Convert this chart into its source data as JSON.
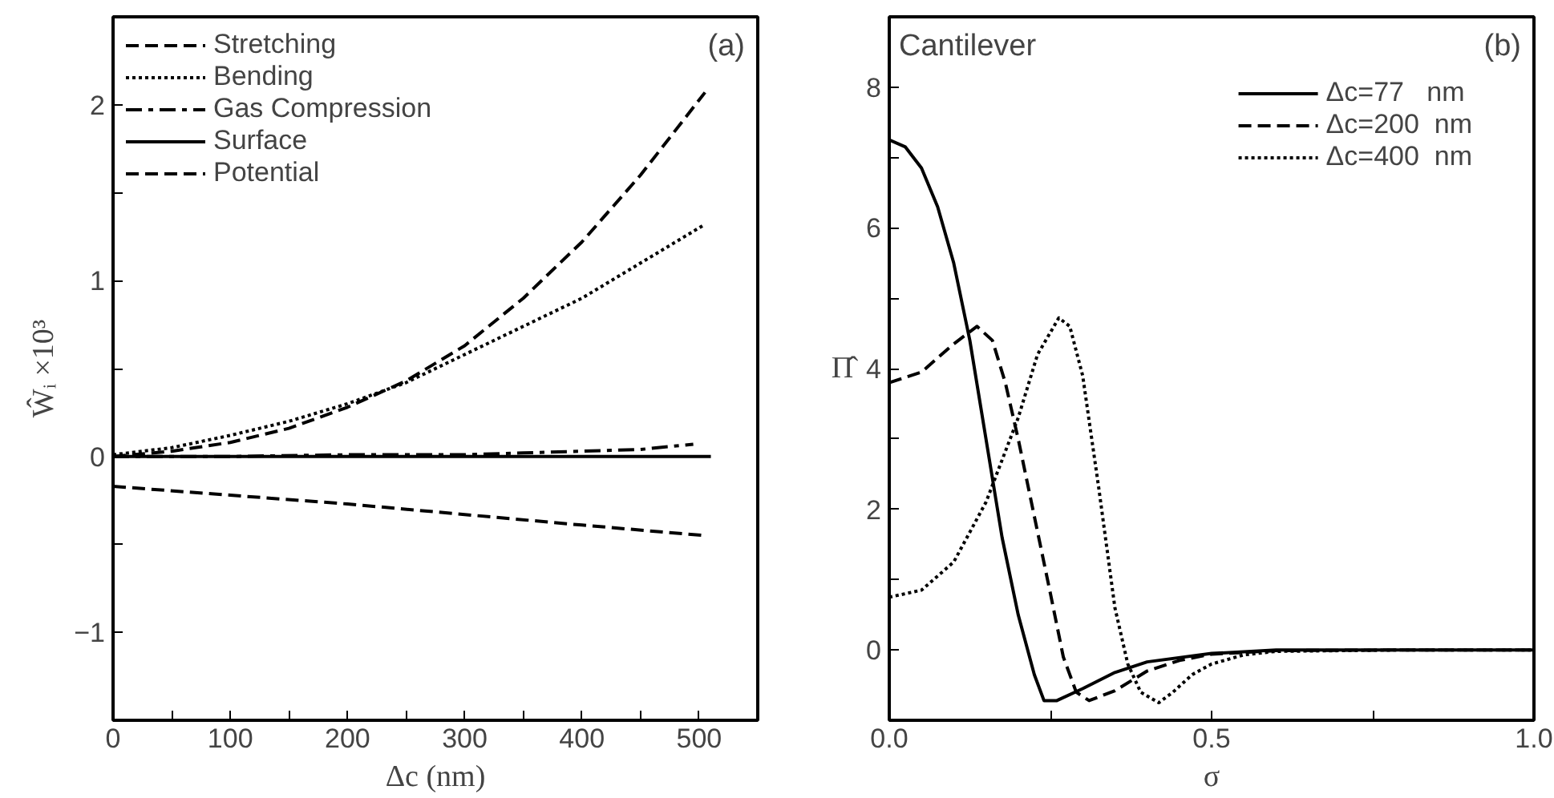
{
  "chart_data": [
    {
      "type": "line",
      "xlabel": "Δc (nm)",
      "ylabel": "Ŵᵢ ×10³",
      "annotations": [
        "(a)"
      ],
      "xlim": [
        0,
        550
      ],
      "ylim": [
        -1.5,
        2.5
      ],
      "xticks": [
        0,
        {
          "value": 50,
          "label": null
        },
        100,
        {
          "value": 150,
          "label": null
        },
        200,
        {
          "value": 250,
          "label": null
        },
        300,
        {
          "value": 350,
          "label": null
        },
        400,
        {
          "value": 450,
          "label": null
        },
        500
      ],
      "yticks": [
        -1,
        {
          "value": -0.5,
          "label": null
        },
        0,
        {
          "value": 0.5,
          "label": null
        },
        1,
        {
          "value": 1.5,
          "label": null
        },
        2
      ],
      "grid": false,
      "legend": "top left",
      "marker": "none",
      "series": [
        {
          "name": "Stretching",
          "color": "#000000",
          "line_style": "dashed",
          "x": [
            0,
            50,
            100,
            150,
            200,
            250,
            300,
            350,
            400,
            450,
            505
          ],
          "values": [
            0,
            0.03,
            0.08,
            0.16,
            0.28,
            0.43,
            0.63,
            0.9,
            1.22,
            1.6,
            2.07
          ]
        },
        {
          "name": "Bending",
          "color": "#000000",
          "line_style": "dotted",
          "x": [
            0,
            50,
            100,
            150,
            200,
            250,
            300,
            350,
            400,
            450,
            505
          ],
          "values": [
            0.01,
            0.05,
            0.12,
            0.2,
            0.3,
            0.42,
            0.58,
            0.74,
            0.9,
            1.1,
            1.32
          ]
        },
        {
          "name": "Gas Compression",
          "color": "#000000",
          "line_style": "dashdot",
          "x": [
            0,
            100,
            200,
            300,
            350,
            400,
            450,
            495
          ],
          "values": [
            0,
            0,
            0.01,
            0.01,
            0.02,
            0.03,
            0.04,
            0.07
          ]
        },
        {
          "name": "Surface",
          "color": "#000000",
          "line_style": "solid",
          "x": [
            0,
            510
          ],
          "values": [
            0,
            0
          ]
        },
        {
          "name": "Potential",
          "color": "#000000",
          "line_style": "dashed",
          "x": [
            0,
            100,
            200,
            300,
            400,
            505
          ],
          "values": [
            -0.17,
            -0.22,
            -0.27,
            -0.33,
            -0.39,
            -0.45
          ]
        }
      ]
    },
    {
      "type": "line",
      "xlabel": "σ",
      "ylabel": "Π̂",
      "annotations": [
        "Cantilever",
        "(b)"
      ],
      "xlim": [
        0,
        1
      ],
      "ylim": [
        -1,
        9
      ],
      "xticks": [
        {
          "value": 0,
          "label": "0.0"
        },
        {
          "value": 0.25,
          "label": null
        },
        0.5,
        {
          "value": 0.75,
          "label": null
        },
        {
          "value": 1,
          "label": "1.0"
        }
      ],
      "yticks": [
        0,
        {
          "value": 1,
          "label": null
        },
        2,
        {
          "value": 3,
          "label": null
        },
        4,
        {
          "value": 5,
          "label": null
        },
        6,
        {
          "value": 7,
          "label": null
        },
        8
      ],
      "grid": false,
      "legend": "top right",
      "marker": "none",
      "series": [
        {
          "name": "Δc=77   nm",
          "color": "#000000",
          "line_style": "solid",
          "x": [
            0,
            0.025,
            0.05,
            0.075,
            0.1,
            0.125,
            0.15,
            0.175,
            0.2,
            0.225,
            0.24,
            0.26,
            0.3,
            0.35,
            0.4,
            0.5,
            0.6,
            0.8,
            1.0
          ],
          "values": [
            7.25,
            7.15,
            6.85,
            6.3,
            5.5,
            4.4,
            3.0,
            1.6,
            0.5,
            -0.35,
            -0.72,
            -0.72,
            -0.55,
            -0.32,
            -0.17,
            -0.05,
            0,
            0,
            0
          ]
        },
        {
          "name": "Δc=200  nm",
          "color": "#000000",
          "line_style": "dashed",
          "x": [
            0,
            0.05,
            0.1,
            0.136,
            0.16,
            0.18,
            0.2,
            0.225,
            0.25,
            0.27,
            0.29,
            0.31,
            0.35,
            0.4,
            0.45,
            0.5,
            0.6,
            0.8,
            1.0
          ],
          "values": [
            3.8,
            3.95,
            4.35,
            4.6,
            4.4,
            3.8,
            3.0,
            1.9,
            0.8,
            -0.1,
            -0.6,
            -0.72,
            -0.58,
            -0.3,
            -0.15,
            -0.06,
            -0.01,
            0,
            0
          ]
        },
        {
          "name": "Δc=400  nm",
          "color": "#000000",
          "line_style": "dotted",
          "x": [
            0,
            0.05,
            0.1,
            0.15,
            0.2,
            0.23,
            0.263,
            0.28,
            0.3,
            0.325,
            0.35,
            0.37,
            0.39,
            0.418,
            0.44,
            0.47,
            0.5,
            0.55,
            0.6,
            0.8,
            1.0
          ],
          "values": [
            0.75,
            0.85,
            1.25,
            2.1,
            3.3,
            4.2,
            4.72,
            4.6,
            3.9,
            2.3,
            0.6,
            -0.2,
            -0.6,
            -0.75,
            -0.6,
            -0.35,
            -0.2,
            -0.07,
            -0.02,
            0,
            0
          ]
        }
      ]
    }
  ]
}
